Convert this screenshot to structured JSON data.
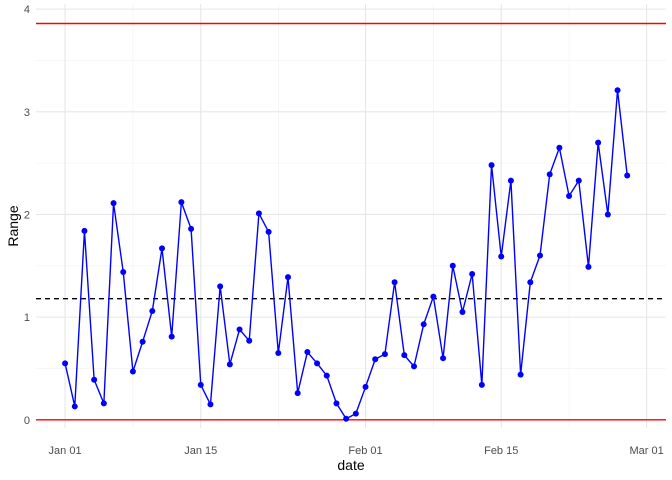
{
  "chart_data": {
    "type": "line",
    "title": "",
    "xlabel": "date",
    "ylabel": "Range",
    "x_type": "date",
    "xlim": [
      "2023-12-29",
      "2024-03-03"
    ],
    "ylim": [
      -0.08,
      4.05
    ],
    "x_ticks": [
      {
        "date": "2024-01-01",
        "label": "Jan 01"
      },
      {
        "date": "2024-01-15",
        "label": "Jan 15"
      },
      {
        "date": "2024-02-01",
        "label": "Feb 01"
      },
      {
        "date": "2024-02-15",
        "label": "Feb 15"
      },
      {
        "date": "2024-03-01",
        "label": "Mar 01"
      }
    ],
    "x_minor_ticks": [
      "2024-01-08",
      "2024-01-23",
      "2024-02-08",
      "2024-02-22"
    ],
    "y_ticks": [
      {
        "value": 0,
        "label": "0"
      },
      {
        "value": 1,
        "label": "1"
      },
      {
        "value": 2,
        "label": "2"
      },
      {
        "value": 3,
        "label": "3"
      },
      {
        "value": 4,
        "label": "4"
      }
    ],
    "y_minor_ticks": [
      0.5,
      1.5,
      2.5,
      3.5
    ],
    "grid": true,
    "series": [
      {
        "color": "#0000ff",
        "start_date": "2024-01-01",
        "values": [
          0.55,
          0.13,
          1.84,
          0.39,
          0.16,
          2.11,
          1.44,
          0.47,
          0.76,
          1.06,
          1.67,
          0.81,
          2.12,
          1.86,
          0.34,
          0.15,
          1.3,
          0.54,
          0.88,
          0.77,
          2.01,
          1.83,
          0.65,
          1.39,
          0.26,
          0.66,
          0.55,
          0.43,
          0.16,
          0.01,
          0.06,
          0.32,
          0.59,
          0.64,
          1.34,
          0.63,
          0.52,
          0.93,
          1.2,
          0.6,
          1.5,
          1.05,
          1.42,
          0.34,
          2.48,
          1.59,
          2.33,
          0.44,
          1.34,
          1.6,
          2.39,
          2.65,
          2.18,
          2.33,
          1.49,
          2.7,
          2.0,
          3.21,
          2.38
        ]
      }
    ],
    "reference_lines": [
      {
        "value": 3.86,
        "color": "#ff0000",
        "style": "solid"
      },
      {
        "value": 1.18,
        "color": "#000000",
        "style": "dashed"
      },
      {
        "value": 0,
        "color": "#ff0000",
        "style": "solid"
      }
    ]
  }
}
